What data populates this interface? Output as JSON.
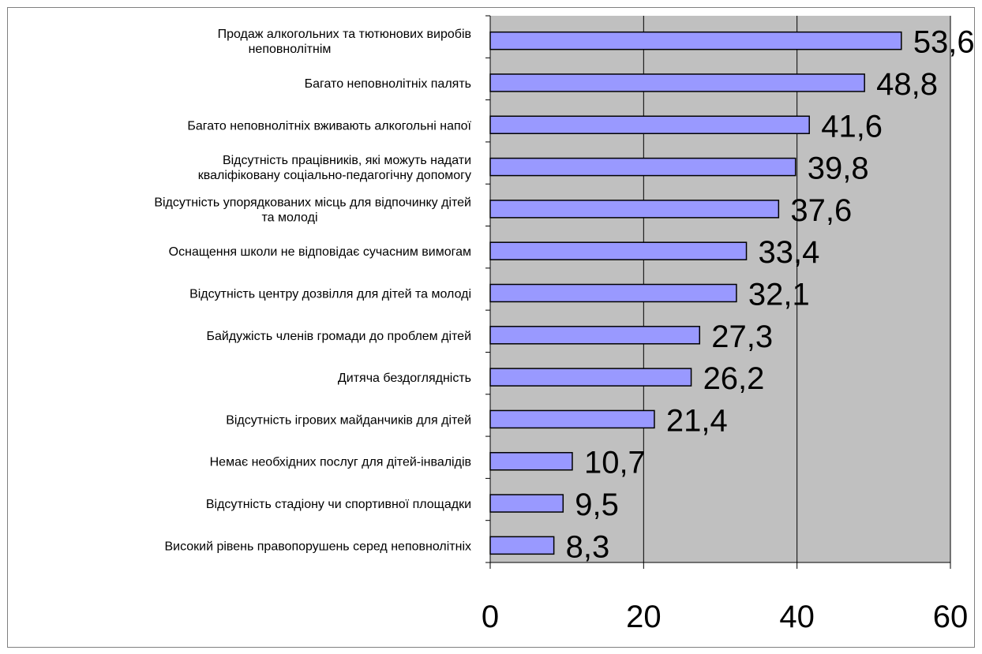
{
  "chart_data": {
    "type": "bar",
    "orientation": "horizontal",
    "categories": [
      [
        "Продаж алкогольних та тютюнових виробів",
        "неповнолітнім"
      ],
      [
        "Багато неповнолітніх палять"
      ],
      [
        "Багато неповнолітніх вживають алкогольні напої"
      ],
      [
        "Відсутність працівників, які можуть надати",
        "кваліфіковану соціально-педагогічну допомогу"
      ],
      [
        "Відсутність упорядкованих місць для відпочинку дітей",
        "та молоді"
      ],
      [
        "Оснащення школи не відповідає сучасним вимогам"
      ],
      [
        "Відсутність центру дозвілля для дітей та молоді"
      ],
      [
        "Байдужість членів громади до проблем дітей"
      ],
      [
        "Дитяча бездоглядність"
      ],
      [
        "Відсутність ігрових майданчиків для дітей"
      ],
      [
        "Немає необхідних послуг для дітей-інвалідів"
      ],
      [
        "Відсутність стадіону чи спортивної площадки"
      ],
      [
        "Високий рівень правопорушень серед неповнолітніх"
      ]
    ],
    "values": [
      53.6,
      48.8,
      41.6,
      39.8,
      37.6,
      33.4,
      32.1,
      27.3,
      26.2,
      21.4,
      10.7,
      9.5,
      8.3
    ],
    "value_labels": [
      "53,6",
      "48,8",
      "41,6",
      "39,8",
      "37,6",
      "33,4",
      "32,1",
      "27,3",
      "26,2",
      "21,4",
      "10,7",
      "9,5",
      "8,3"
    ],
    "xlim": [
      0,
      60
    ],
    "x_ticks": [
      0,
      20,
      40,
      60
    ],
    "x_tick_labels": [
      "0",
      "20",
      "40",
      "60"
    ],
    "grid": true,
    "legend": "none",
    "title": "",
    "xlabel": "",
    "ylabel": "",
    "colors": {
      "bar_fill": "#9999ff",
      "bar_stroke": "#000000",
      "plot_background": "#c0c0c0",
      "gridline": "#000000"
    }
  }
}
